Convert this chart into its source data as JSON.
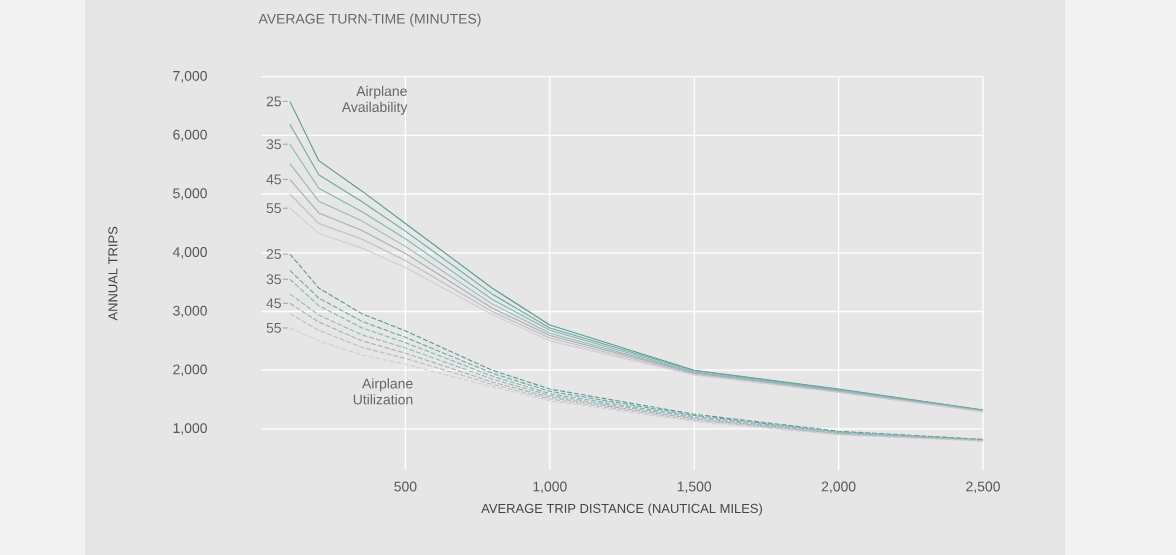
{
  "chart_data": {
    "type": "line",
    "title": "AVERAGE TURN-TIME (MINUTES)",
    "xlabel": "AVERAGE TRIP DISTANCE (NAUTICAL MILES)",
    "ylabel": "ANNUAL TRIPS",
    "x": [
      100,
      200,
      350,
      500,
      800,
      1000,
      1500,
      2000,
      2500
    ],
    "xlim": [
      0,
      2500
    ],
    "ylim": [
      300,
      7000
    ],
    "xticks": [
      {
        "value": 500,
        "label": "500"
      },
      {
        "value": 1000,
        "label": "1,000"
      },
      {
        "value": 1500,
        "label": "1,500"
      },
      {
        "value": 2000,
        "label": "2,000"
      },
      {
        "value": 2500,
        "label": "2,500"
      }
    ],
    "yticks": [
      {
        "value": 1000,
        "label": "1,000"
      },
      {
        "value": 2000,
        "label": "2,000"
      },
      {
        "value": 3000,
        "label": "3,000"
      },
      {
        "value": 4000,
        "label": "4,000"
      },
      {
        "value": 5000,
        "label": "5,000"
      },
      {
        "value": 6000,
        "label": "6,000"
      },
      {
        "value": 7000,
        "label": "7,000"
      }
    ],
    "grid": true,
    "series": [
      {
        "name": "25",
        "color": "#5a9a90",
        "line_style": "solid",
        "values": [
          6580,
          5570,
          5050,
          4500,
          3400,
          2770,
          2000,
          1680,
          1320
        ]
      },
      {
        "color": "#6aaaa2",
        "line_style": "solid",
        "values": [
          6190,
          5330,
          4870,
          4370,
          3300,
          2720,
          1990,
          1670,
          1320
        ]
      },
      {
        "name": "35",
        "color": "#80b8b2",
        "line_style": "solid",
        "values": [
          5850,
          5100,
          4700,
          4240,
          3210,
          2680,
          1970,
          1660,
          1310
        ]
      },
      {
        "color": "#98b8b6",
        "line_style": "solid",
        "values": [
          5520,
          4880,
          4540,
          4110,
          3130,
          2630,
          1960,
          1650,
          1300
        ]
      },
      {
        "name": "45",
        "color": "#a8aeb2",
        "line_style": "solid",
        "values": [
          5250,
          4680,
          4380,
          3990,
          3060,
          2590,
          1950,
          1640,
          1300
        ]
      },
      {
        "color": "#bcbcc4",
        "line_style": "solid",
        "values": [
          5000,
          4500,
          4230,
          3870,
          3000,
          2550,
          1930,
          1630,
          1300
        ]
      },
      {
        "name": "55",
        "color": "#cfcdd5",
        "line_style": "solid",
        "values": [
          4760,
          4330,
          4080,
          3750,
          2950,
          2500,
          1920,
          1620,
          1290
        ]
      },
      {
        "name": "25",
        "color": "#5a9a90",
        "line_style": "dashed",
        "values": [
          3980,
          3400,
          2960,
          2670,
          2000,
          1680,
          1250,
          960,
          820
        ]
      },
      {
        "color": "#6aaaa2",
        "line_style": "dashed",
        "values": [
          3700,
          3230,
          2830,
          2560,
          1950,
          1640,
          1230,
          950,
          820
        ]
      },
      {
        "name": "35",
        "color": "#80b8b2",
        "line_style": "dashed",
        "values": [
          3550,
          3100,
          2720,
          2470,
          1900,
          1600,
          1210,
          940,
          810
        ]
      },
      {
        "color": "#98b8b6",
        "line_style": "dashed",
        "values": [
          3300,
          2940,
          2600,
          2380,
          1850,
          1570,
          1190,
          930,
          800
        ]
      },
      {
        "name": "45",
        "color": "#a8aeb2",
        "line_style": "dashed",
        "values": [
          3140,
          2820,
          2500,
          2290,
          1800,
          1540,
          1170,
          920,
          800
        ]
      },
      {
        "color": "#bcbcc4",
        "line_style": "dashed",
        "values": [
          2960,
          2680,
          2390,
          2200,
          1760,
          1510,
          1150,
          910,
          800
        ]
      },
      {
        "name": "55",
        "color": "#cfcdd5",
        "line_style": "dashed",
        "values": [
          2720,
          2500,
          2260,
          2100,
          1720,
          1480,
          1130,
          900,
          790
        ]
      }
    ],
    "annotations": [
      "Airplane Availability",
      "Airplane Utilization"
    ]
  }
}
